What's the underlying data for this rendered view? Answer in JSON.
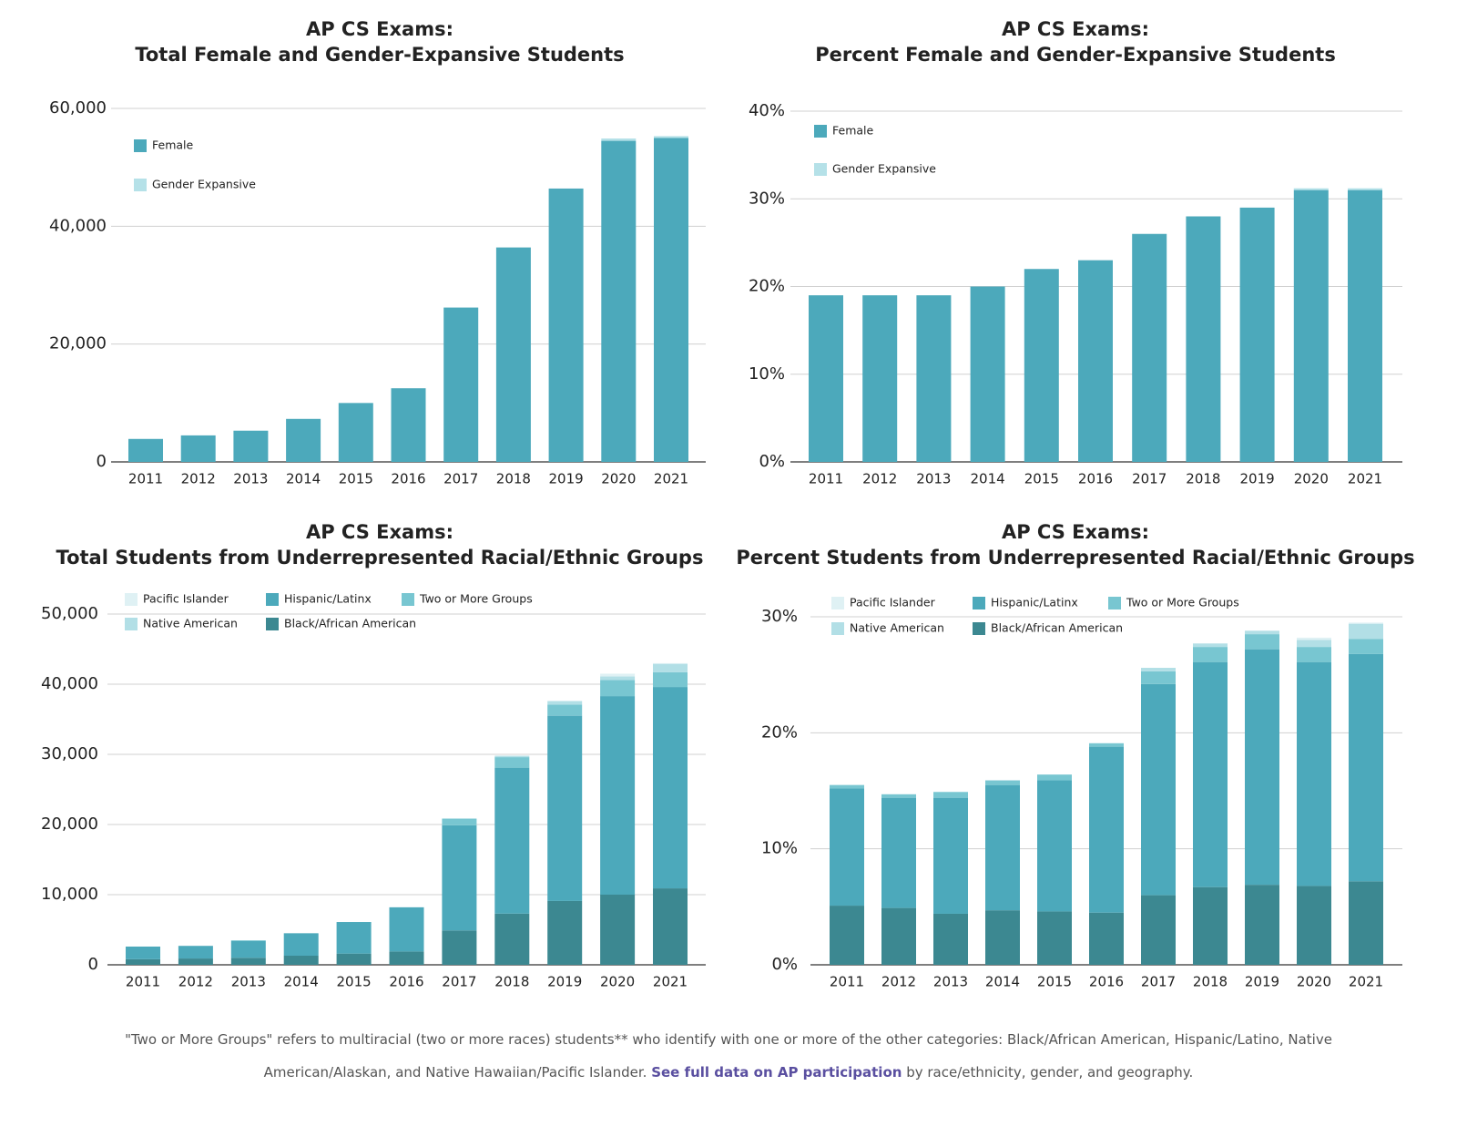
{
  "chart_data": [
    {
      "type": "stacked_bar",
      "title": "AP CS Exams:",
      "subtitle": "Total Female and Gender-Expansive Students",
      "categories": [
        "2011",
        "2012",
        "2013",
        "2014",
        "2015",
        "2016",
        "2017",
        "2018",
        "2019",
        "2020",
        "2021"
      ],
      "series": [
        {
          "name": "Female",
          "color": "#4ca9bb",
          "values": [
            3900,
            4500,
            5300,
            7300,
            10000,
            12500,
            26200,
            36400,
            46400,
            54500,
            55000
          ]
        },
        {
          "name": "Gender Expansive",
          "color": "#b5e1e8",
          "values": [
            null,
            null,
            null,
            null,
            null,
            null,
            null,
            null,
            null,
            400,
            300
          ]
        }
      ],
      "ylim": [
        0,
        60000
      ],
      "yticks": [
        0,
        {
          "value": 20000,
          "label": "20,000"
        },
        {
          "value": 40000,
          "label": "40,000"
        },
        {
          "value": 60000,
          "label": "60,000"
        }
      ],
      "grid": true
    },
    {
      "type": "stacked_bar",
      "title": "AP CS Exams:",
      "subtitle": "Percent Female and Gender-Expansive Students",
      "categories": [
        "2011",
        "2012",
        "2013",
        "2014",
        "2015",
        "2016",
        "2017",
        "2018",
        "2019",
        "2020",
        "2021"
      ],
      "series": [
        {
          "name": "Female",
          "color": "#4ca9bb",
          "values": [
            19,
            19,
            19,
            20,
            22,
            23,
            26,
            28,
            29,
            31,
            31
          ]
        },
        {
          "name": "Gender Expansive",
          "color": "#b5e1e8",
          "values": [
            null,
            null,
            null,
            null,
            null,
            null,
            null,
            null,
            null,
            0.2,
            0.2
          ]
        }
      ],
      "ylim": [
        0,
        40
      ],
      "yticks": [
        {
          "value": 0,
          "label": "0%"
        },
        {
          "value": 10,
          "label": "10%"
        },
        {
          "value": 20,
          "label": "20%"
        },
        {
          "value": 30,
          "label": "30%"
        },
        {
          "value": 40,
          "label": "40%"
        }
      ],
      "grid": true
    },
    {
      "type": "stacked_bar",
      "title": "AP CS Exams:",
      "subtitle": "Total Students from Underrepresented Racial/Ethnic Groups",
      "categories": [
        "2011",
        "2012",
        "2013",
        "2014",
        "2015",
        "2016",
        "2017",
        "2018",
        "2019",
        "2020",
        "2021"
      ],
      "series": [
        {
          "name": "Black/African American",
          "color": "#3c8891",
          "values": [
            800,
            900,
            1000,
            1300,
            1600,
            1900,
            4900,
            7300,
            9100,
            10000,
            10900
          ]
        },
        {
          "name": "Hispanic/Latinx",
          "color": "#4ca9bb",
          "values": [
            1800,
            1800,
            2400,
            3200,
            4500,
            6300,
            15000,
            20800,
            26400,
            28300,
            28700
          ]
        },
        {
          "name": "Two or More Groups",
          "color": "#78c6d1",
          "values": [
            null,
            null,
            100,
            null,
            null,
            null,
            900,
            1500,
            1600,
            2300,
            2100
          ]
        },
        {
          "name": "Native American",
          "color": "#b2dfe6",
          "values": [
            null,
            null,
            null,
            null,
            null,
            null,
            100,
            200,
            500,
            500,
            1200
          ]
        },
        {
          "name": "Pacific Islander",
          "color": "#dff1f4",
          "values": [
            null,
            null,
            null,
            null,
            null,
            null,
            null,
            null,
            null,
            400,
            100
          ]
        }
      ],
      "ylim": [
        0,
        50000
      ],
      "yticks": [
        0,
        {
          "value": 10000,
          "label": "10,000"
        },
        {
          "value": 20000,
          "label": "20,000"
        },
        {
          "value": 30000,
          "label": "30,000"
        },
        {
          "value": 40000,
          "label": "40,000"
        },
        {
          "value": 50000,
          "label": "50,000"
        }
      ],
      "grid": true
    },
    {
      "type": "stacked_bar",
      "title": "AP CS Exams:",
      "subtitle": "Percent Students from Underrepresented Racial/Ethnic Groups",
      "categories": [
        "2011",
        "2012",
        "2013",
        "2014",
        "2015",
        "2016",
        "2017",
        "2018",
        "2019",
        "2020",
        "2021"
      ],
      "series": [
        {
          "name": "Black/African American",
          "color": "#3c8891",
          "values": [
            5.1,
            4.9,
            4.4,
            4.7,
            4.6,
            4.5,
            6.0,
            6.7,
            6.9,
            6.8,
            7.2
          ]
        },
        {
          "name": "Hispanic/Latinx",
          "color": "#4ca9bb",
          "values": [
            10.1,
            9.5,
            10.0,
            10.8,
            11.3,
            14.3,
            18.2,
            19.4,
            20.3,
            19.3,
            19.6
          ]
        },
        {
          "name": "Two or More Groups",
          "color": "#78c6d1",
          "values": [
            0.3,
            0.3,
            0.5,
            0.4,
            0.5,
            0.3,
            1.1,
            1.3,
            1.3,
            1.3,
            1.3
          ]
        },
        {
          "name": "Native American",
          "color": "#b2dfe6",
          "values": [
            null,
            null,
            null,
            null,
            null,
            null,
            0.3,
            0.3,
            0.3,
            0.6,
            1.3
          ]
        },
        {
          "name": "Pacific Islander",
          "color": "#dff1f4",
          "values": [
            null,
            null,
            null,
            null,
            null,
            null,
            null,
            null,
            null,
            0.2,
            0.1
          ]
        }
      ],
      "ylim": [
        0,
        30
      ],
      "yticks": [
        {
          "value": 0,
          "label": "0%"
        },
        {
          "value": 10,
          "label": "10%"
        },
        {
          "value": 20,
          "label": "20%"
        },
        {
          "value": 30,
          "label": "30%"
        }
      ],
      "grid": true
    }
  ],
  "footer": {
    "line1": "\"Two or More Groups\" refers to multiracial (two or more races) students** who identify with one or more of the other categories: Black/African American, Hispanic/Latino, Native",
    "line2_before": "American/Alaskan, and Native Hawaiian/Pacific Islander.",
    "link": "See full data on AP participation",
    "line2_after": "by race/ethnicity, gender, and geography."
  }
}
